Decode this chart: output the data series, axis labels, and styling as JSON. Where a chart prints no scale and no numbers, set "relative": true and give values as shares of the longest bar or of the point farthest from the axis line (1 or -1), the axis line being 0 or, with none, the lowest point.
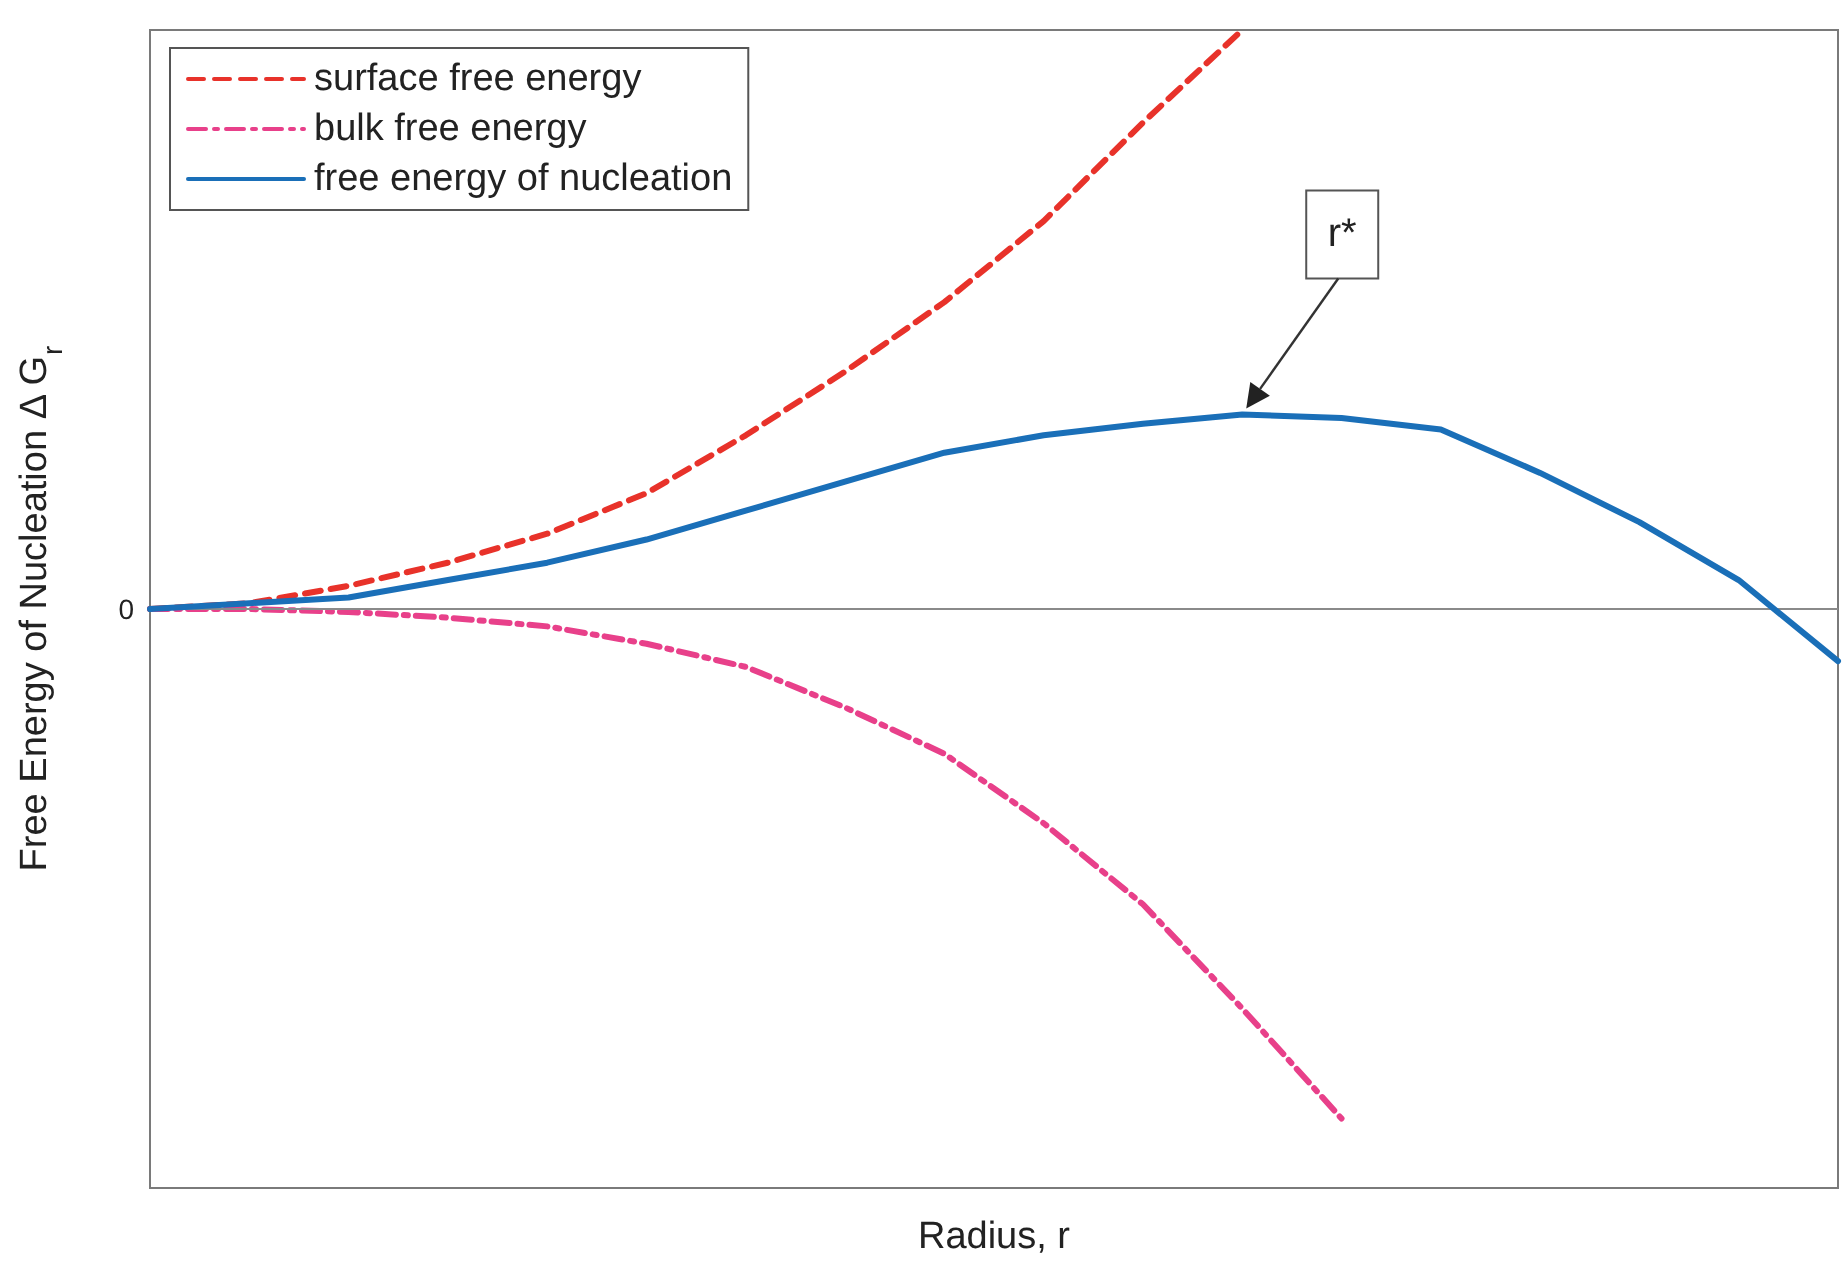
{
  "chart_data": {
    "type": "line",
    "relative": true,
    "xlabel": "Radius, r",
    "ylabel": "Free Energy of Nucleation Δ G$_{r}$",
    "categories": [
      null,
      null,
      null,
      null,
      null,
      null,
      null,
      null,
      null,
      null,
      null,
      null,
      null,
      null,
      null,
      null,
      null,
      null
    ],
    "series": [
      {
        "name": "surface free energy",
        "color": "#e8322a",
        "line_style": "dashed",
        "values": [
          0,
          0.01,
          0.04,
          0.08,
          0.13,
          0.2,
          0.3,
          0.41,
          0.53,
          0.67,
          0.84,
          1.0,
          null,
          null,
          null,
          null,
          null,
          null
        ]
      },
      {
        "name": "bulk free energy",
        "color": "#e8408a",
        "line_style": "dashdot",
        "values": [
          0,
          0,
          -0.005,
          -0.015,
          -0.03,
          -0.06,
          -0.1,
          -0.17,
          -0.25,
          -0.37,
          -0.51,
          -0.69,
          -0.88,
          null,
          null,
          null,
          null,
          null
        ]
      },
      {
        "name": "free energy of nucleation",
        "color": "#1a6fb8",
        "line_style": "solid",
        "values": [
          0,
          0.01,
          0.02,
          0.05,
          0.08,
          0.12,
          0.17,
          0.22,
          0.27,
          0.3,
          0.32,
          0.336,
          0.33,
          0.31,
          0.235,
          0.15,
          0.05,
          -0.09
        ]
      }
    ],
    "ref_lines": [
      {
        "axis": "y",
        "value": 0,
        "label": "0",
        "color": "#8a8a8a"
      }
    ],
    "annotations": [
      "r*"
    ],
    "legend": "top left",
    "marker": "none"
  }
}
